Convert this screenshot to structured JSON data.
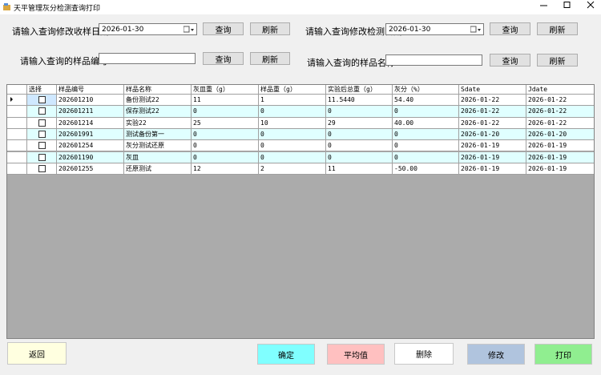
{
  "window": {
    "title": "天平管理灰分检测查询打印"
  },
  "filters": {
    "receive_date": {
      "label": "请输入查询修改收样日期",
      "value": "2026-01-30",
      "query": "查询",
      "refresh": "刷新"
    },
    "test_date": {
      "label": "请输入查询修改检测日期",
      "value": "2026-01-30",
      "query": "查询",
      "refresh": "刷新"
    },
    "sample_no": {
      "label": "请输入查询的样品编号",
      "query": "查询",
      "refresh": "刷新"
    },
    "sample_name": {
      "label": "请输入查询的样品名称",
      "query": "查询",
      "refresh": "刷新"
    }
  },
  "table": {
    "columns": [
      "选择",
      "样品编号",
      "样品名称",
      "灰皿重（g）",
      "样品重（g）",
      "实验后总重（g）",
      "灰分（%）",
      "Sdate",
      "Jdate"
    ],
    "rows": [
      [
        "202601210",
        "备份测试22",
        "11",
        "1",
        "11.5440",
        "54.40",
        "2026-01-22",
        "2026-01-22"
      ],
      [
        "202601211",
        "保存测试22",
        "0",
        "0",
        "0",
        "0",
        "2026-01-22",
        "2026-01-22"
      ],
      [
        "202601214",
        "实验22",
        "25",
        "10",
        "29",
        "40.00",
        "2026-01-22",
        "2026-01-22"
      ],
      [
        "202601991",
        "测试备份第一",
        "0",
        "0",
        "0",
        "0",
        "2026-01-20",
        "2026-01-20"
      ],
      [
        "202601254",
        "灰分测试还原",
        "0",
        "0",
        "0",
        "0",
        "2026-01-19",
        "2026-01-19"
      ],
      [
        "202601190",
        "灰皿",
        "0",
        "0",
        "0",
        "0",
        "2026-01-19",
        "2026-01-19"
      ],
      [
        "202601255",
        "还原测试",
        "12",
        "2",
        "11",
        "-50.00",
        "2026-01-19",
        "2026-01-19"
      ]
    ]
  },
  "buttons": {
    "back": "返回",
    "confirm": "确定",
    "average": "平均值",
    "delete": "删除",
    "modify": "修改",
    "print": "打印"
  }
}
